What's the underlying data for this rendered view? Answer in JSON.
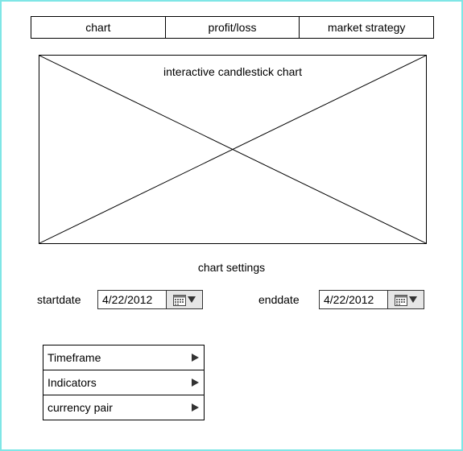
{
  "tabs": [
    {
      "label": "chart"
    },
    {
      "label": "profit/loss"
    },
    {
      "label": "market strategy"
    }
  ],
  "chart": {
    "placeholder_label": "interactive candlestick chart"
  },
  "settings": {
    "title": "chart settings",
    "start": {
      "label": "startdate",
      "value": "4/22/2012"
    },
    "end": {
      "label": "enddate",
      "value": "4/22/2012"
    }
  },
  "menu": {
    "items": [
      {
        "label": "Timeframe",
        "arrow_icon": "triangle-right-icon"
      },
      {
        "label": "Indicators",
        "arrow_icon": "triangle-right-icon"
      },
      {
        "label": "currency pair",
        "arrow_icon": "triangle-right-icon"
      }
    ]
  },
  "colors": {
    "frame_border": "#7fe6e6",
    "line": "#000000",
    "date_button_bg": "#e6e6e6"
  }
}
